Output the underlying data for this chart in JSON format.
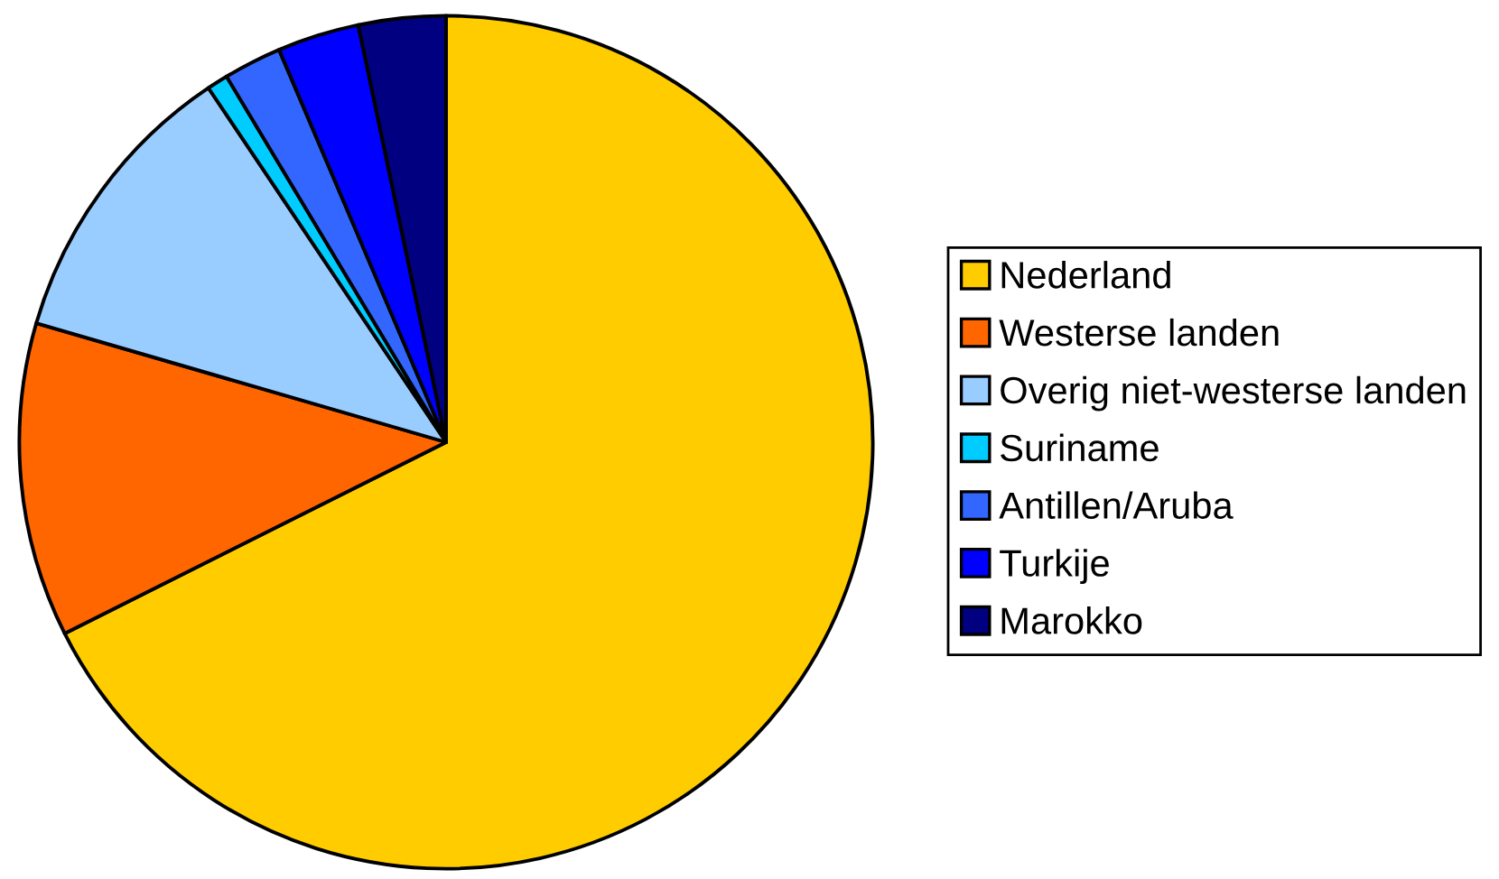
{
  "chart_data": {
    "type": "pie",
    "categories": [
      "Nederland",
      "Westerse landen",
      "Overig niet-westerse landen",
      "Suriname",
      "Antillen/Aruba",
      "Turkije",
      "Marokko"
    ],
    "values": [
      67.6,
      11.9,
      11.1,
      0.8,
      2.2,
      3.1,
      3.3
    ],
    "colors": [
      "#ffcc00",
      "#ff6600",
      "#99ccff",
      "#00ccff",
      "#3366ff",
      "#0000ff",
      "#000080"
    ],
    "legend": "right"
  }
}
